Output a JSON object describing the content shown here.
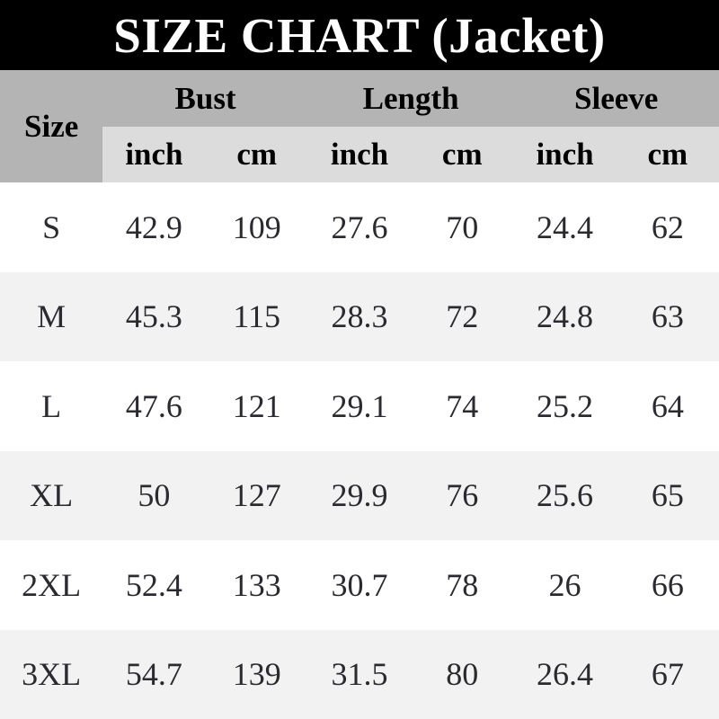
{
  "title": "SIZE CHART (Jacket)",
  "colors": {
    "title_bg": "#000000",
    "title_text": "#ffffff",
    "group_header_bg": "#b4b4b4",
    "unit_header_bg": "#dcdcdc",
    "row_bg": "#ffffff",
    "row_alt_bg": "#f2f2f2",
    "data_text": "#2a2a30"
  },
  "header": {
    "size_label": "Size",
    "group_labels": [
      "Bust",
      "Length",
      "Sleeve"
    ],
    "unit_labels": [
      "inch",
      "cm",
      "inch",
      "cm",
      "inch",
      "cm"
    ]
  },
  "chart_data": {
    "type": "table",
    "title": "SIZE CHART (Jacket)",
    "columns": [
      "Size",
      "Bust inch",
      "Bust cm",
      "Length inch",
      "Length cm",
      "Sleeve inch",
      "Sleeve cm"
    ],
    "rows": [
      [
        "S",
        42.9,
        109,
        27.6,
        70,
        24.4,
        62
      ],
      [
        "M",
        45.3,
        115,
        28.3,
        72,
        24.8,
        63
      ],
      [
        "L",
        47.6,
        121,
        29.1,
        74,
        25.2,
        64
      ],
      [
        "XL",
        50,
        127,
        29.9,
        76,
        25.6,
        65
      ],
      [
        "2XL",
        52.4,
        133,
        30.7,
        78,
        26,
        66
      ],
      [
        "3XL",
        54.7,
        139,
        31.5,
        80,
        26.4,
        67
      ]
    ]
  }
}
